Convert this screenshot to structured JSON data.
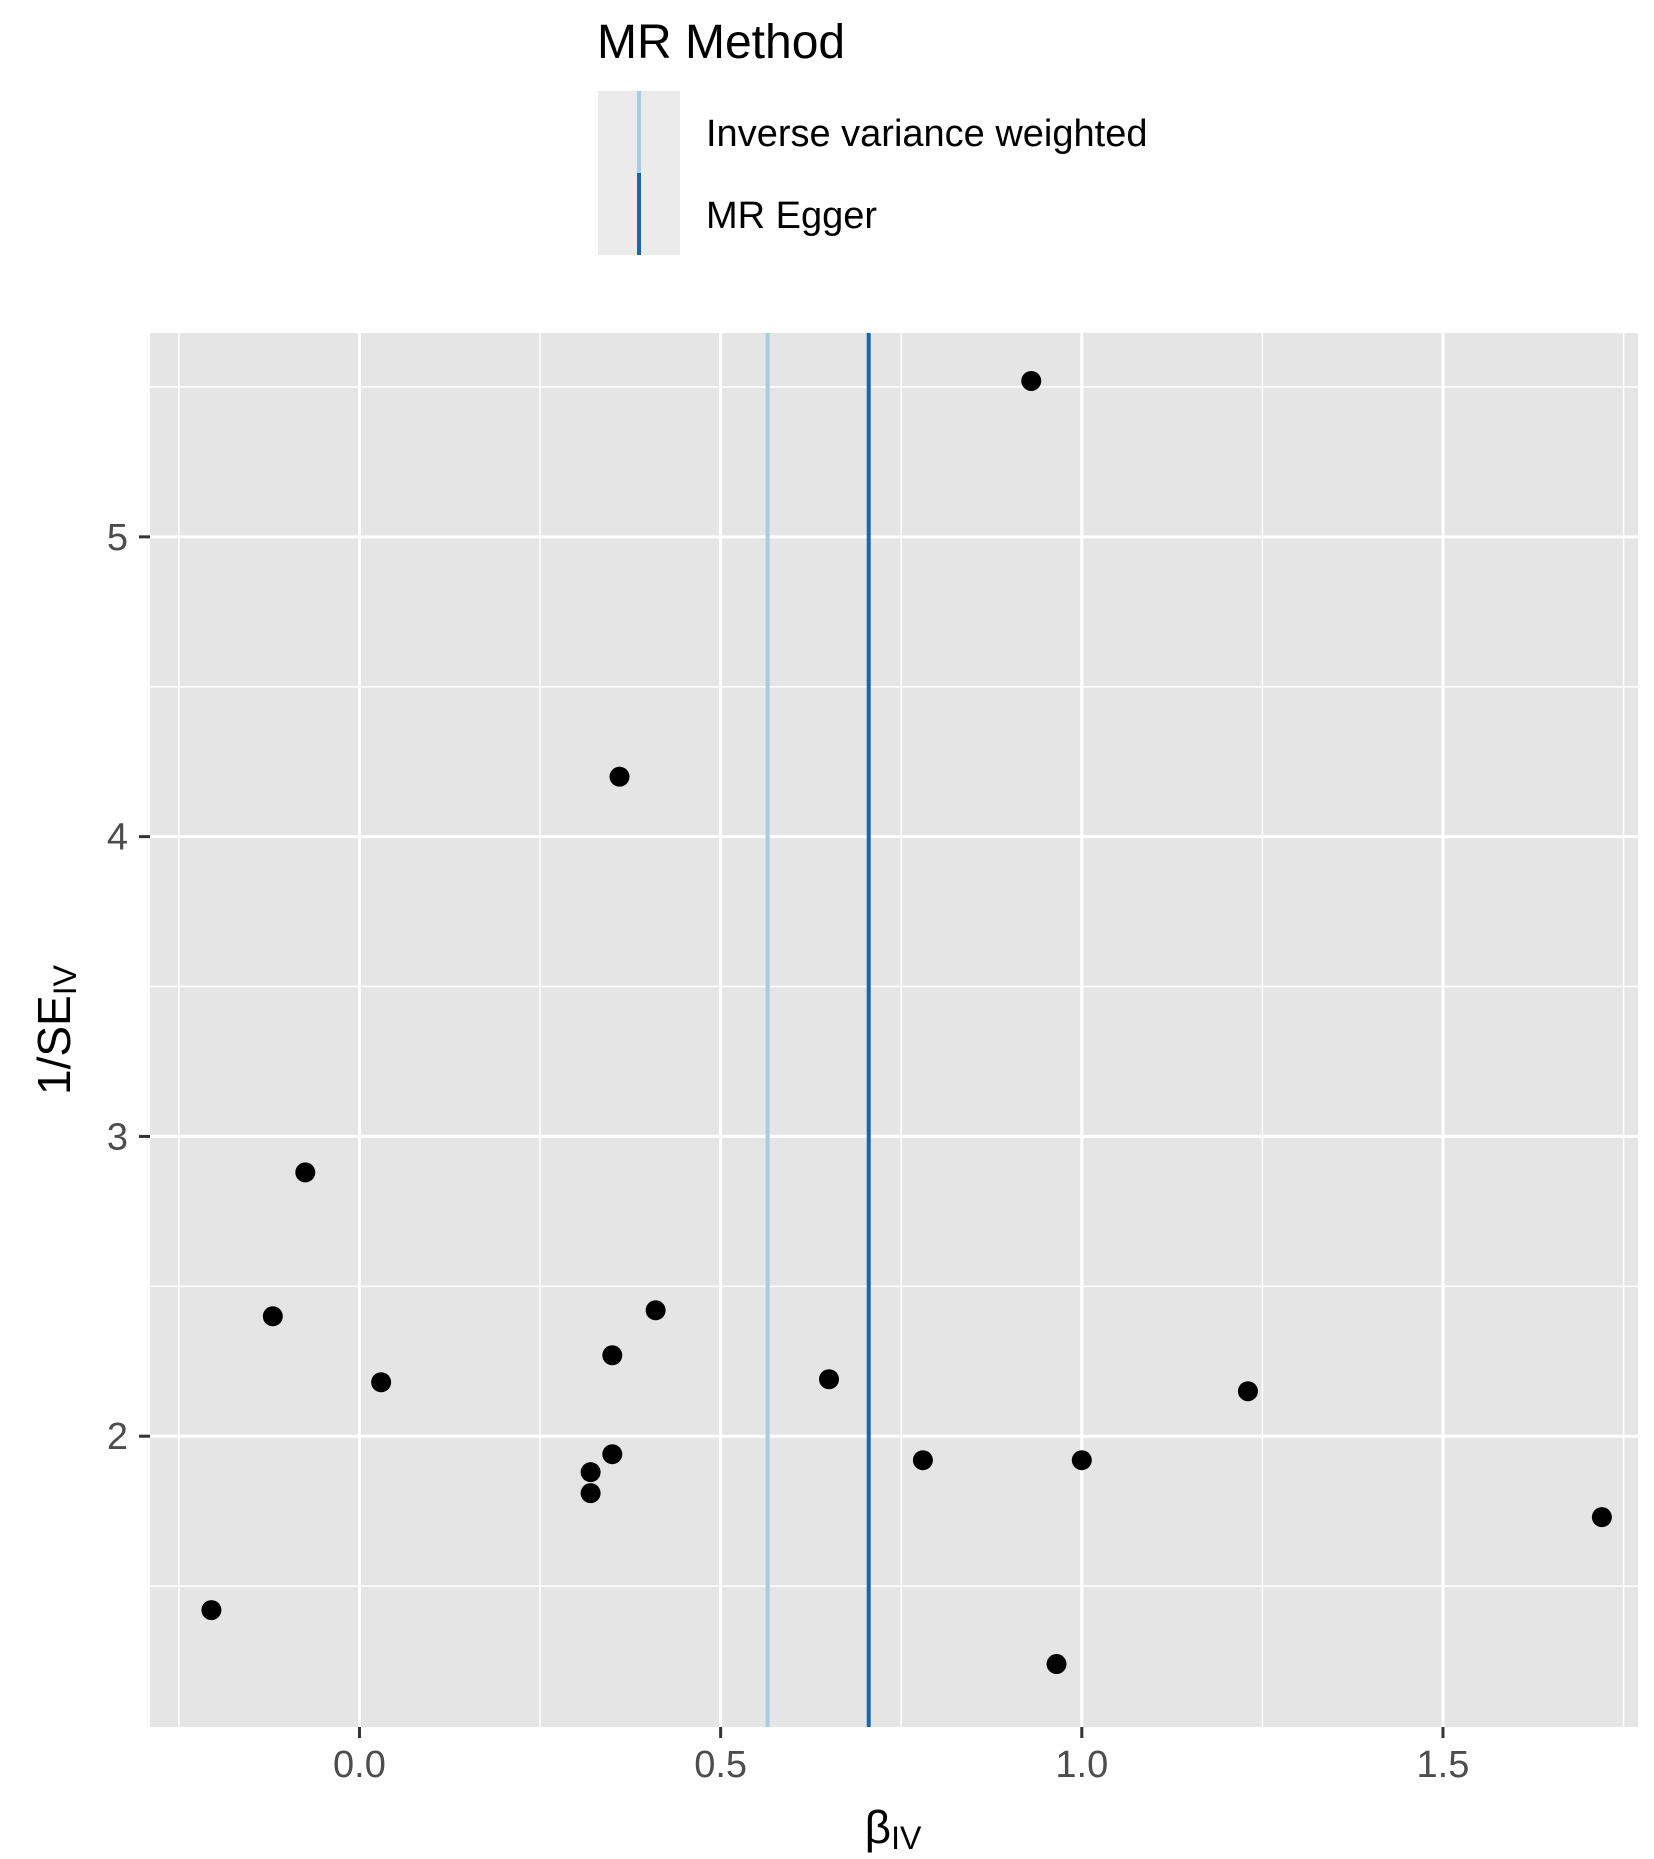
{
  "chart_data": {
    "type": "scatter",
    "title": "",
    "xlabel": "β",
    "xlabel_subscript": "IV",
    "ylabel": "1/SE",
    "ylabel_subscript": "IV",
    "xlim": [
      -0.29,
      1.77
    ],
    "ylim": [
      1.03,
      5.68
    ],
    "x_ticks": [
      0.0,
      0.5,
      1.0,
      1.5
    ],
    "x_tick_labels": [
      "0.0",
      "0.5",
      "1.0",
      "1.5"
    ],
    "y_ticks": [
      2,
      3,
      4,
      5
    ],
    "y_tick_labels": [
      "2",
      "3",
      "4",
      "5"
    ],
    "grid": true,
    "points": [
      {
        "x": 0.93,
        "y": 5.52
      },
      {
        "x": 0.36,
        "y": 4.2
      },
      {
        "x": -0.075,
        "y": 2.88
      },
      {
        "x": -0.12,
        "y": 2.4
      },
      {
        "x": 0.41,
        "y": 2.42
      },
      {
        "x": 0.35,
        "y": 2.27
      },
      {
        "x": 0.03,
        "y": 2.18
      },
      {
        "x": 0.65,
        "y": 2.19
      },
      {
        "x": 1.23,
        "y": 2.15
      },
      {
        "x": 0.35,
        "y": 1.94
      },
      {
        "x": 0.32,
        "y": 1.88
      },
      {
        "x": 0.32,
        "y": 1.81
      },
      {
        "x": 0.78,
        "y": 1.92
      },
      {
        "x": 1.0,
        "y": 1.92
      },
      {
        "x": 1.72,
        "y": 1.73
      },
      {
        "x": -0.205,
        "y": 1.42
      },
      {
        "x": 0.965,
        "y": 1.24
      }
    ],
    "lines": [
      {
        "name": "Inverse variance weighted",
        "x": 0.565,
        "color": "#A6CEE3"
      },
      {
        "name": "MR Egger",
        "x": 0.705,
        "color": "#1F63A9"
      }
    ],
    "legend": {
      "title": "MR Method",
      "position": "top"
    },
    "colors": {
      "panel": "#E5E5E5",
      "grid": "#FFFFFF",
      "point": "#000000",
      "legend_key": "#EBEBEB"
    }
  }
}
